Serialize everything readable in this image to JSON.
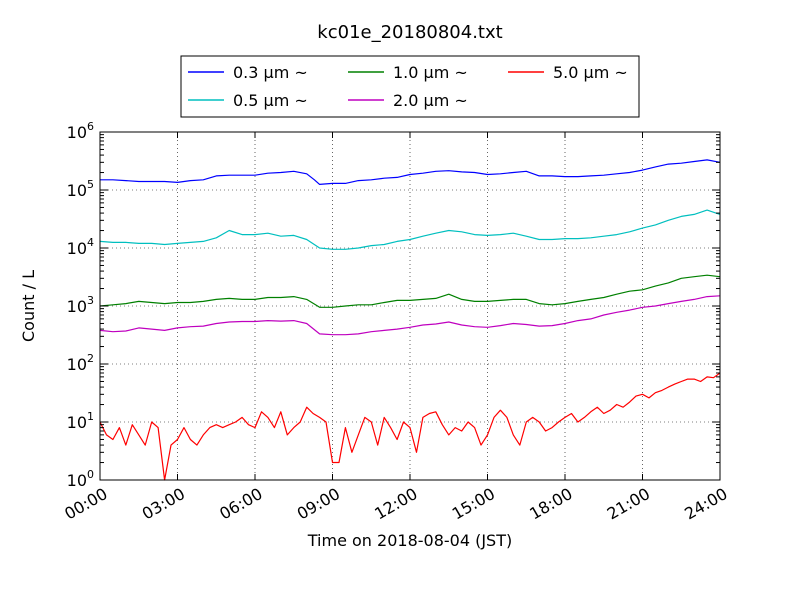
{
  "chart_data": {
    "type": "line",
    "title": "kc01e_20180804.txt",
    "xlabel": "Time on 2018-08-04 (JST)",
    "ylabel": "Count / L",
    "xlim": [
      0,
      24
    ],
    "ylim": [
      1,
      1000000
    ],
    "yscale": "log",
    "grid": true,
    "legend_position": "top-center",
    "x_tick_labels": [
      "00:00",
      "03:00",
      "06:00",
      "09:00",
      "12:00",
      "15:00",
      "18:00",
      "21:00",
      "24:00"
    ],
    "y_tick_labels": [
      {
        "base": "10",
        "exp": "0"
      },
      {
        "base": "10",
        "exp": "1"
      },
      {
        "base": "10",
        "exp": "2"
      },
      {
        "base": "10",
        "exp": "3"
      },
      {
        "base": "10",
        "exp": "4"
      },
      {
        "base": "10",
        "exp": "5"
      },
      {
        "base": "10",
        "exp": "6"
      }
    ],
    "series": [
      {
        "name": "0.3 μm ~",
        "color": "#0000ff",
        "points": [
          [
            0,
            150000
          ],
          [
            0.5,
            150000
          ],
          [
            1,
            145000
          ],
          [
            1.5,
            140000
          ],
          [
            2,
            140000
          ],
          [
            2.5,
            140000
          ],
          [
            3,
            135000
          ],
          [
            3.5,
            145000
          ],
          [
            4,
            150000
          ],
          [
            4.5,
            175000
          ],
          [
            5,
            180000
          ],
          [
            5.5,
            180000
          ],
          [
            6,
            180000
          ],
          [
            6.5,
            195000
          ],
          [
            7,
            200000
          ],
          [
            7.5,
            210000
          ],
          [
            8,
            190000
          ],
          [
            8.3,
            150000
          ],
          [
            8.5,
            125000
          ],
          [
            9,
            130000
          ],
          [
            9.5,
            130000
          ],
          [
            10,
            145000
          ],
          [
            10.5,
            150000
          ],
          [
            11,
            160000
          ],
          [
            11.5,
            165000
          ],
          [
            12,
            185000
          ],
          [
            12.5,
            195000
          ],
          [
            13,
            210000
          ],
          [
            13.5,
            215000
          ],
          [
            14,
            205000
          ],
          [
            14.5,
            200000
          ],
          [
            15,
            185000
          ],
          [
            15.5,
            190000
          ],
          [
            16,
            200000
          ],
          [
            16.5,
            210000
          ],
          [
            17,
            175000
          ],
          [
            17.5,
            175000
          ],
          [
            18,
            170000
          ],
          [
            18.5,
            170000
          ],
          [
            19,
            175000
          ],
          [
            19.5,
            180000
          ],
          [
            20,
            190000
          ],
          [
            20.5,
            200000
          ],
          [
            21,
            220000
          ],
          [
            21.5,
            250000
          ],
          [
            22,
            280000
          ],
          [
            22.5,
            290000
          ],
          [
            23,
            310000
          ],
          [
            23.5,
            330000
          ],
          [
            24,
            300000
          ]
        ]
      },
      {
        "name": "0.5 μm ~",
        "color": "#00bfbf",
        "points": [
          [
            0,
            13000
          ],
          [
            0.5,
            12500
          ],
          [
            1,
            12500
          ],
          [
            1.5,
            12000
          ],
          [
            2,
            12000
          ],
          [
            2.5,
            11500
          ],
          [
            3,
            12000
          ],
          [
            3.5,
            12500
          ],
          [
            4,
            13000
          ],
          [
            4.5,
            15000
          ],
          [
            5,
            20000
          ],
          [
            5.5,
            17000
          ],
          [
            6,
            17000
          ],
          [
            6.5,
            18000
          ],
          [
            7,
            16000
          ],
          [
            7.5,
            16500
          ],
          [
            8,
            14000
          ],
          [
            8.5,
            10000
          ],
          [
            9,
            9500
          ],
          [
            9.5,
            9500
          ],
          [
            10,
            10000
          ],
          [
            10.5,
            11000
          ],
          [
            11,
            11500
          ],
          [
            11.5,
            13000
          ],
          [
            12,
            14000
          ],
          [
            12.5,
            16000
          ],
          [
            13,
            18000
          ],
          [
            13.5,
            20000
          ],
          [
            14,
            19000
          ],
          [
            14.5,
            17000
          ],
          [
            15,
            16500
          ],
          [
            15.5,
            17000
          ],
          [
            16,
            18000
          ],
          [
            16.5,
            16000
          ],
          [
            17,
            14000
          ],
          [
            17.5,
            14000
          ],
          [
            18,
            14500
          ],
          [
            18.5,
            14500
          ],
          [
            19,
            15000
          ],
          [
            19.5,
            16000
          ],
          [
            20,
            17000
          ],
          [
            20.5,
            19000
          ],
          [
            21,
            22000
          ],
          [
            21.5,
            25000
          ],
          [
            22,
            30000
          ],
          [
            22.5,
            35000
          ],
          [
            23,
            38000
          ],
          [
            23.5,
            45000
          ],
          [
            24,
            38000
          ]
        ]
      },
      {
        "name": "1.0 μm ~",
        "color": "#008000",
        "points": [
          [
            0,
            1000
          ],
          [
            0.5,
            1050
          ],
          [
            1,
            1100
          ],
          [
            1.5,
            1200
          ],
          [
            2,
            1150
          ],
          [
            2.5,
            1100
          ],
          [
            3,
            1150
          ],
          [
            3.5,
            1150
          ],
          [
            4,
            1200
          ],
          [
            4.5,
            1300
          ],
          [
            5,
            1350
          ],
          [
            5.5,
            1300
          ],
          [
            6,
            1300
          ],
          [
            6.5,
            1400
          ],
          [
            7,
            1400
          ],
          [
            7.5,
            1450
          ],
          [
            8,
            1300
          ],
          [
            8.5,
            950
          ],
          [
            9,
            950
          ],
          [
            9.5,
            1000
          ],
          [
            10,
            1050
          ],
          [
            10.5,
            1050
          ],
          [
            11,
            1150
          ],
          [
            11.5,
            1250
          ],
          [
            12,
            1250
          ],
          [
            12.5,
            1300
          ],
          [
            13,
            1350
          ],
          [
            13.5,
            1600
          ],
          [
            14,
            1300
          ],
          [
            14.5,
            1200
          ],
          [
            15,
            1200
          ],
          [
            15.5,
            1250
          ],
          [
            16,
            1300
          ],
          [
            16.5,
            1300
          ],
          [
            17,
            1100
          ],
          [
            17.5,
            1050
          ],
          [
            18,
            1100
          ],
          [
            18.5,
            1200
          ],
          [
            19,
            1300
          ],
          [
            19.5,
            1400
          ],
          [
            20,
            1600
          ],
          [
            20.5,
            1800
          ],
          [
            21,
            1900
          ],
          [
            21.5,
            2200
          ],
          [
            22,
            2500
          ],
          [
            22.5,
            3000
          ],
          [
            23,
            3200
          ],
          [
            23.5,
            3400
          ],
          [
            24,
            3200
          ]
        ]
      },
      {
        "name": "2.0 μm ~",
        "color": "#bf00bf",
        "points": [
          [
            0,
            380
          ],
          [
            0.5,
            360
          ],
          [
            1,
            370
          ],
          [
            1.5,
            420
          ],
          [
            2,
            400
          ],
          [
            2.5,
            380
          ],
          [
            3,
            420
          ],
          [
            3.5,
            440
          ],
          [
            4,
            450
          ],
          [
            4.5,
            500
          ],
          [
            5,
            530
          ],
          [
            5.5,
            540
          ],
          [
            6,
            540
          ],
          [
            6.5,
            560
          ],
          [
            7,
            550
          ],
          [
            7.5,
            560
          ],
          [
            8,
            500
          ],
          [
            8.5,
            330
          ],
          [
            9,
            320
          ],
          [
            9.5,
            320
          ],
          [
            10,
            330
          ],
          [
            10.5,
            360
          ],
          [
            11,
            380
          ],
          [
            11.5,
            400
          ],
          [
            12,
            430
          ],
          [
            12.5,
            470
          ],
          [
            13,
            490
          ],
          [
            13.5,
            530
          ],
          [
            14,
            470
          ],
          [
            14.5,
            440
          ],
          [
            15,
            430
          ],
          [
            15.5,
            460
          ],
          [
            16,
            500
          ],
          [
            16.5,
            480
          ],
          [
            17,
            450
          ],
          [
            17.5,
            460
          ],
          [
            18,
            500
          ],
          [
            18.5,
            560
          ],
          [
            19,
            600
          ],
          [
            19.5,
            700
          ],
          [
            20,
            780
          ],
          [
            20.5,
            850
          ],
          [
            21,
            950
          ],
          [
            21.5,
            1000
          ],
          [
            22,
            1100
          ],
          [
            22.5,
            1200
          ],
          [
            23,
            1300
          ],
          [
            23.5,
            1450
          ],
          [
            24,
            1500
          ]
        ]
      },
      {
        "name": "5.0 μm ~",
        "color": "#ff0000",
        "points": [
          [
            0,
            10
          ],
          [
            0.25,
            6
          ],
          [
            0.5,
            5
          ],
          [
            0.75,
            8
          ],
          [
            1,
            4
          ],
          [
            1.25,
            9
          ],
          [
            1.5,
            6
          ],
          [
            1.75,
            4
          ],
          [
            2,
            10
          ],
          [
            2.25,
            8
          ],
          [
            2.5,
            1
          ],
          [
            2.75,
            4
          ],
          [
            3,
            5
          ],
          [
            3.25,
            8
          ],
          [
            3.5,
            5
          ],
          [
            3.75,
            4
          ],
          [
            4,
            6
          ],
          [
            4.25,
            8
          ],
          [
            4.5,
            9
          ],
          [
            4.75,
            8
          ],
          [
            5,
            9
          ],
          [
            5.25,
            10
          ],
          [
            5.5,
            12
          ],
          [
            5.75,
            9
          ],
          [
            6,
            8
          ],
          [
            6.25,
            15
          ],
          [
            6.5,
            12
          ],
          [
            6.75,
            8
          ],
          [
            7,
            15
          ],
          [
            7.25,
            6
          ],
          [
            7.5,
            8
          ],
          [
            7.75,
            10
          ],
          [
            8,
            18
          ],
          [
            8.25,
            14
          ],
          [
            8.5,
            12
          ],
          [
            8.75,
            10
          ],
          [
            9,
            2
          ],
          [
            9.25,
            2
          ],
          [
            9.5,
            8
          ],
          [
            9.75,
            3
          ],
          [
            10,
            6
          ],
          [
            10.25,
            12
          ],
          [
            10.5,
            10
          ],
          [
            10.75,
            4
          ],
          [
            11,
            12
          ],
          [
            11.25,
            8
          ],
          [
            11.5,
            5
          ],
          [
            11.75,
            10
          ],
          [
            12,
            8
          ],
          [
            12.25,
            3
          ],
          [
            12.5,
            12
          ],
          [
            12.75,
            14
          ],
          [
            13,
            15
          ],
          [
            13.25,
            9
          ],
          [
            13.5,
            6
          ],
          [
            13.75,
            8
          ],
          [
            14,
            7
          ],
          [
            14.25,
            10
          ],
          [
            14.5,
            8
          ],
          [
            14.75,
            4
          ],
          [
            15,
            6
          ],
          [
            15.25,
            12
          ],
          [
            15.5,
            16
          ],
          [
            15.75,
            12
          ],
          [
            16,
            6
          ],
          [
            16.25,
            4
          ],
          [
            16.5,
            10
          ],
          [
            16.75,
            12
          ],
          [
            17,
            10
          ],
          [
            17.25,
            7
          ],
          [
            17.5,
            8
          ],
          [
            17.75,
            10
          ],
          [
            18,
            12
          ],
          [
            18.25,
            14
          ],
          [
            18.5,
            10
          ],
          [
            18.75,
            12
          ],
          [
            19,
            15
          ],
          [
            19.25,
            18
          ],
          [
            19.5,
            14
          ],
          [
            19.75,
            16
          ],
          [
            20,
            20
          ],
          [
            20.25,
            18
          ],
          [
            20.5,
            22
          ],
          [
            20.75,
            28
          ],
          [
            21,
            30
          ],
          [
            21.25,
            26
          ],
          [
            21.5,
            32
          ],
          [
            21.75,
            35
          ],
          [
            22,
            40
          ],
          [
            22.25,
            45
          ],
          [
            22.5,
            50
          ],
          [
            22.75,
            55
          ],
          [
            23,
            55
          ],
          [
            23.25,
            50
          ],
          [
            23.5,
            60
          ],
          [
            23.75,
            58
          ],
          [
            24,
            70
          ]
        ]
      }
    ]
  }
}
